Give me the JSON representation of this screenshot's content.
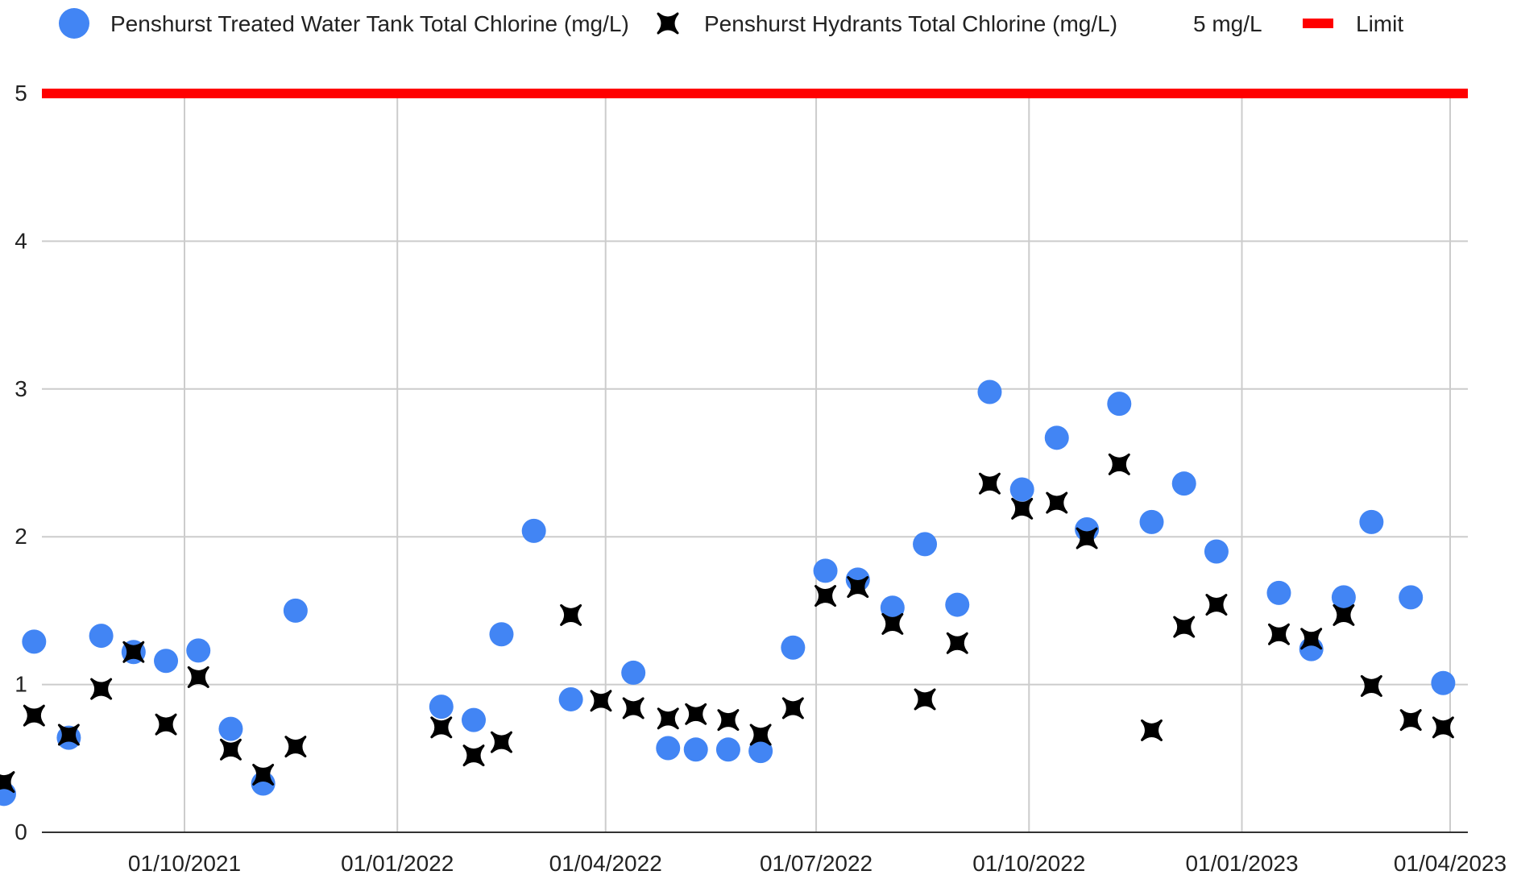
{
  "chart_data": {
    "type": "scatter",
    "title": "",
    "xlabel": "",
    "ylabel": "",
    "ylim": [
      0,
      5
    ],
    "xlim": [
      "2021-07-08",
      "2023-04-01"
    ],
    "grid": true,
    "legend_position": "top",
    "y_ticks": [
      "0",
      "1",
      "2",
      "3",
      "4",
      "5"
    ],
    "x_ticks": [
      {
        "date": "2021-10-01",
        "label": "01/10/2021"
      },
      {
        "date": "2022-01-01",
        "label": "01/01/2022"
      },
      {
        "date": "2022-04-01",
        "label": "01/04/2022"
      },
      {
        "date": "2022-07-01",
        "label": "01/07/2022"
      },
      {
        "date": "2022-10-01",
        "label": "01/10/2022"
      },
      {
        "date": "2023-01-01",
        "label": "01/01/2023"
      },
      {
        "date": "2023-04-01",
        "label": "01/04/2023"
      }
    ],
    "series": [
      {
        "name": "Penshurst Treated Water Tank Total Chlorine (mg/L)",
        "marker": "circle",
        "color": "#4285F4",
        "points": [
          [
            "2021-07-15",
            0.26
          ],
          [
            "2021-07-28",
            1.29
          ],
          [
            "2021-08-12",
            0.64
          ],
          [
            "2021-08-26",
            1.33
          ],
          [
            "2021-09-09",
            1.22
          ],
          [
            "2021-09-23",
            1.16
          ],
          [
            "2021-10-07",
            1.23
          ],
          [
            "2021-10-21",
            0.7
          ],
          [
            "2021-11-04",
            0.33
          ],
          [
            "2021-11-18",
            1.5
          ],
          [
            "2022-01-20",
            0.85
          ],
          [
            "2022-02-03",
            0.76
          ],
          [
            "2022-02-15",
            1.34
          ],
          [
            "2022-03-01",
            2.04
          ],
          [
            "2022-03-17",
            0.9
          ],
          [
            "2022-04-13",
            1.08
          ],
          [
            "2022-04-28",
            0.57
          ],
          [
            "2022-05-10",
            0.56
          ],
          [
            "2022-05-24",
            0.56
          ],
          [
            "2022-06-07",
            0.55
          ],
          [
            "2022-06-21",
            1.25
          ],
          [
            "2022-07-05",
            1.77
          ],
          [
            "2022-07-19",
            1.71
          ],
          [
            "2022-08-03",
            1.52
          ],
          [
            "2022-08-17",
            1.95
          ],
          [
            "2022-08-31",
            1.54
          ],
          [
            "2022-09-14",
            2.98
          ],
          [
            "2022-09-28",
            2.32
          ],
          [
            "2022-10-13",
            2.67
          ],
          [
            "2022-10-26",
            2.05
          ],
          [
            "2022-11-09",
            2.9
          ],
          [
            "2022-11-23",
            2.1
          ],
          [
            "2022-12-07",
            2.36
          ],
          [
            "2022-12-21",
            1.9
          ],
          [
            "2023-01-17",
            1.62
          ],
          [
            "2023-01-31",
            1.24
          ],
          [
            "2023-02-14",
            1.59
          ],
          [
            "2023-02-26",
            2.1
          ],
          [
            "2023-03-15",
            1.59
          ],
          [
            "2023-03-29",
            1.01
          ]
        ]
      },
      {
        "name": "Penshurst Hydrants Total Chlorine (mg/L)",
        "marker": "x",
        "color": "#000000",
        "points": [
          [
            "2021-07-15",
            0.34
          ],
          [
            "2021-07-28",
            0.79
          ],
          [
            "2021-08-12",
            0.66
          ],
          [
            "2021-08-26",
            0.97
          ],
          [
            "2021-09-09",
            1.22
          ],
          [
            "2021-09-23",
            0.73
          ],
          [
            "2021-10-07",
            1.05
          ],
          [
            "2021-10-21",
            0.56
          ],
          [
            "2021-11-04",
            0.39
          ],
          [
            "2021-11-18",
            0.58
          ],
          [
            "2022-01-20",
            0.71
          ],
          [
            "2022-02-03",
            0.52
          ],
          [
            "2022-02-15",
            0.61
          ],
          [
            "2022-03-17",
            1.47
          ],
          [
            "2022-03-30",
            0.89
          ],
          [
            "2022-04-13",
            0.84
          ],
          [
            "2022-04-28",
            0.77
          ],
          [
            "2022-05-10",
            0.8
          ],
          [
            "2022-05-24",
            0.76
          ],
          [
            "2022-06-07",
            0.66
          ],
          [
            "2022-06-21",
            0.84
          ],
          [
            "2022-07-05",
            1.6
          ],
          [
            "2022-07-19",
            1.66
          ],
          [
            "2022-08-03",
            1.41
          ],
          [
            "2022-08-17",
            0.9
          ],
          [
            "2022-08-31",
            1.28
          ],
          [
            "2022-09-14",
            2.36
          ],
          [
            "2022-09-28",
            2.19
          ],
          [
            "2022-10-13",
            2.23
          ],
          [
            "2022-10-26",
            1.99
          ],
          [
            "2022-11-09",
            2.49
          ],
          [
            "2022-11-23",
            0.69
          ],
          [
            "2022-12-07",
            1.39
          ],
          [
            "2022-12-21",
            1.54
          ],
          [
            "2023-01-17",
            1.34
          ],
          [
            "2023-01-31",
            1.31
          ],
          [
            "2023-02-14",
            1.47
          ],
          [
            "2023-02-26",
            0.99
          ],
          [
            "2023-03-15",
            0.76
          ],
          [
            "2023-03-29",
            0.71
          ]
        ]
      }
    ],
    "reference_line": {
      "name": "5 mg/L",
      "value": 5,
      "color": "#FF0000"
    },
    "legend": [
      {
        "label": "Penshurst Treated Water Tank Total Chlorine (mg/L)",
        "marker": "circle"
      },
      {
        "label": "Penshurst Hydrants Total Chlorine (mg/L)",
        "marker": "x"
      },
      {
        "label": "5 mg/L",
        "marker": "none"
      },
      {
        "label": "Limit",
        "marker": "bar"
      }
    ]
  }
}
